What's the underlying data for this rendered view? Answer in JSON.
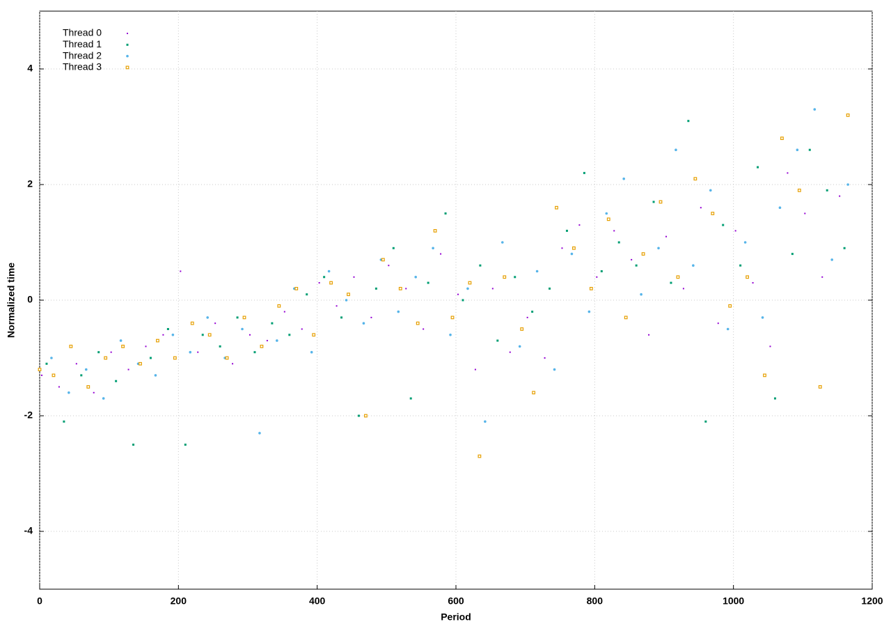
{
  "chart_data": {
    "type": "scatter",
    "x_label": "Period",
    "y_label": "Normalized time",
    "xlim": [
      0,
      1200
    ],
    "ylim": [
      -5,
      5
    ],
    "xticks": [
      0,
      200,
      400,
      600,
      800,
      1000,
      1200
    ],
    "yticks": [
      -4,
      -2,
      0,
      2,
      4
    ],
    "grid": true,
    "legend": "top-left",
    "series": [
      {
        "name": "Thread 0",
        "color": "#9400d3",
        "x": [
          3,
          28,
          53,
          78,
          103,
          128,
          153,
          178,
          203,
          228,
          253,
          278,
          303,
          328,
          353,
          378,
          403,
          428,
          453,
          478,
          503,
          528,
          553,
          578,
          603,
          628,
          653,
          678,
          703,
          728,
          753,
          778,
          803,
          828,
          853,
          878,
          903,
          928,
          953,
          978,
          1003,
          1028,
          1053,
          1078,
          1103,
          1128,
          1153
        ],
        "values": [
          -1.3,
          -1.5,
          -1.1,
          -1.6,
          -0.9,
          -1.2,
          -0.8,
          -0.6,
          0.5,
          -0.9,
          -0.4,
          -1.1,
          -0.6,
          -0.7,
          -0.2,
          -0.5,
          0.3,
          -0.1,
          0.4,
          -0.3,
          0.6,
          0.2,
          -0.5,
          0.8,
          0.1,
          -1.2,
          0.2,
          -0.9,
          -0.3,
          -1.0,
          0.9,
          1.3,
          0.4,
          1.2,
          0.7,
          -0.6,
          1.1,
          0.2,
          1.6,
          -0.4,
          1.2,
          0.3,
          -0.8,
          2.2,
          1.5,
          0.4,
          1.8
        ]
      },
      {
        "name": "Thread 1",
        "color": "#009e73",
        "x": [
          10,
          35,
          60,
          85,
          110,
          135,
          160,
          185,
          210,
          235,
          260,
          285,
          310,
          335,
          360,
          385,
          410,
          435,
          460,
          485,
          510,
          535,
          560,
          585,
          610,
          635,
          660,
          685,
          710,
          735,
          760,
          785,
          810,
          835,
          860,
          885,
          910,
          935,
          960,
          985,
          1010,
          1035,
          1060,
          1085,
          1110,
          1135,
          1160
        ],
        "values": [
          -1.1,
          -2.1,
          -1.3,
          -0.9,
          -1.4,
          -2.5,
          -1.0,
          -0.5,
          -2.5,
          -0.6,
          -0.8,
          -0.3,
          -0.9,
          -0.4,
          -0.6,
          0.1,
          0.4,
          -0.3,
          -2.0,
          0.2,
          0.9,
          -1.7,
          0.3,
          1.5,
          0.0,
          0.6,
          -0.7,
          0.4,
          -0.2,
          0.2,
          1.2,
          2.2,
          0.5,
          1.0,
          0.6,
          1.7,
          0.3,
          3.1,
          -2.1,
          1.3,
          0.6,
          2.3,
          -1.7,
          0.8,
          2.6,
          1.9,
          0.9
        ]
      },
      {
        "name": "Thread 2",
        "color": "#56b4e9",
        "x": [
          17,
          42,
          67,
          92,
          117,
          142,
          167,
          192,
          217,
          242,
          267,
          292,
          317,
          342,
          367,
          392,
          417,
          442,
          467,
          492,
          517,
          542,
          567,
          592,
          617,
          642,
          667,
          692,
          717,
          742,
          767,
          792,
          817,
          842,
          867,
          892,
          917,
          942,
          967,
          992,
          1017,
          1042,
          1067,
          1092,
          1117,
          1142,
          1165
        ],
        "values": [
          -1.0,
          -1.6,
          -1.2,
          -1.7,
          -0.7,
          -1.1,
          -1.3,
          -0.6,
          -0.9,
          -0.3,
          -1.0,
          -0.5,
          -2.3,
          -0.7,
          0.2,
          -0.9,
          0.5,
          0.0,
          -0.4,
          0.7,
          -0.2,
          0.4,
          0.9,
          -0.6,
          0.2,
          -2.1,
          1.0,
          -0.8,
          0.5,
          -1.2,
          0.8,
          -0.2,
          1.5,
          2.1,
          0.1,
          0.9,
          2.6,
          0.6,
          1.9,
          -0.5,
          1.0,
          -0.3,
          1.6,
          2.6,
          3.3,
          0.7,
          2.0
        ]
      },
      {
        "name": "Thread 3",
        "color": "#e69f00",
        "x": [
          0,
          20,
          45,
          70,
          95,
          120,
          145,
          170,
          195,
          220,
          245,
          270,
          295,
          320,
          345,
          370,
          395,
          420,
          445,
          470,
          495,
          520,
          545,
          570,
          595,
          620,
          634,
          670,
          695,
          712,
          745,
          770,
          795,
          820,
          845,
          870,
          895,
          920,
          945,
          970,
          995,
          1020,
          1045,
          1070,
          1095,
          1125,
          1165
        ],
        "values": [
          -1.2,
          -1.3,
          -0.8,
          -1.5,
          -1.0,
          -0.8,
          -1.1,
          -0.7,
          -1.0,
          -0.4,
          -0.6,
          -1.0,
          -0.3,
          -0.8,
          -0.1,
          0.2,
          -0.6,
          0.3,
          0.1,
          -2.0,
          0.7,
          0.2,
          -0.4,
          1.2,
          -0.3,
          0.3,
          -2.7,
          0.4,
          -0.5,
          -1.6,
          1.6,
          0.9,
          0.2,
          1.4,
          -0.3,
          0.8,
          1.7,
          0.4,
          2.1,
          1.5,
          -0.1,
          0.4,
          -1.3,
          2.8,
          1.9,
          -1.5,
          3.2
        ]
      }
    ]
  }
}
